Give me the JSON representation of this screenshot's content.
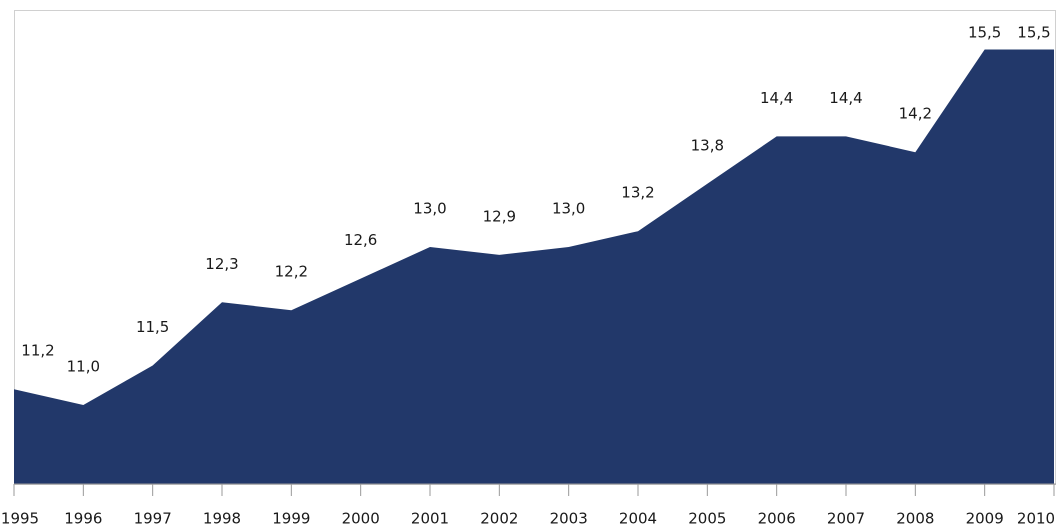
{
  "chart_data": {
    "type": "area",
    "categories": [
      "1995",
      "1996",
      "1997",
      "1998",
      "1999",
      "2000",
      "2001",
      "2002",
      "2003",
      "2004",
      "2005",
      "2006",
      "2007",
      "2008",
      "2009",
      "2010"
    ],
    "values": [
      11.2,
      11.0,
      11.5,
      12.3,
      12.2,
      12.6,
      13.0,
      12.9,
      13.0,
      13.2,
      13.8,
      14.4,
      14.4,
      14.2,
      15.5,
      15.5
    ],
    "value_labels": [
      "11,2",
      "11,0",
      "11,5",
      "12,3",
      "12,2",
      "12,6",
      "13,0",
      "12,9",
      "13,0",
      "13,2",
      "13,8",
      "14,4",
      "14,4",
      "14,2",
      "15,5",
      "15,5"
    ],
    "color": "#22386a",
    "ylim": [
      10,
      16
    ]
  }
}
